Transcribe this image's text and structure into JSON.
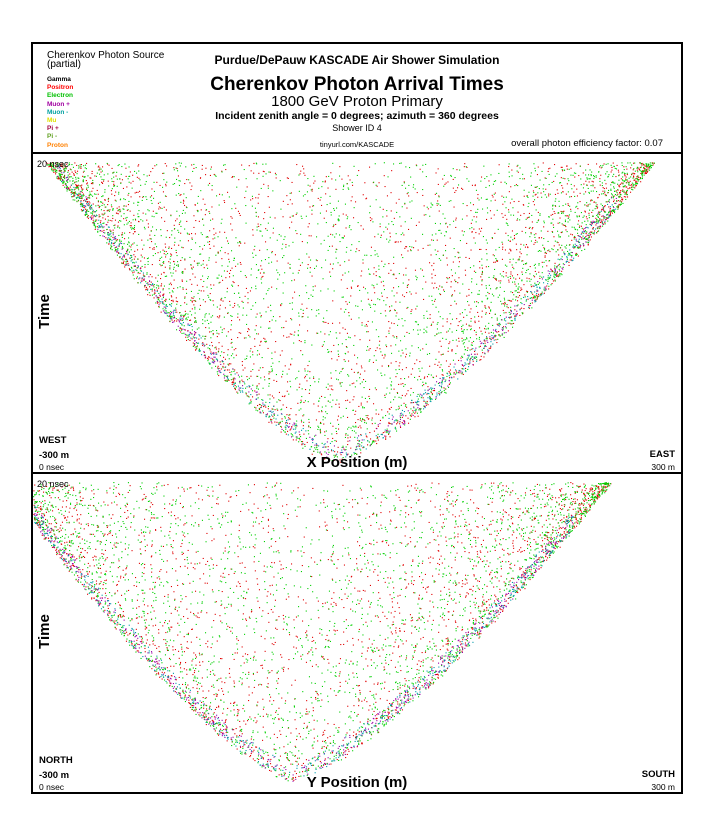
{
  "header": {
    "source_title": "Cherenkov Photon Source",
    "source_subtitle": "(partial)",
    "legend": [
      {
        "label": "Gamma",
        "color": "#000000"
      },
      {
        "label": "Positron",
        "color": "#ff0000"
      },
      {
        "label": "Electron",
        "color": "#00c000"
      },
      {
        "label": "Muon +",
        "color": "#a000a0"
      },
      {
        "label": "Muon -",
        "color": "#00a0a0"
      },
      {
        "label": "Mu",
        "color": "#e0e000"
      },
      {
        "label": "Pi +",
        "color": "#a00040"
      },
      {
        "label": "Pi -",
        "color": "#60a020"
      },
      {
        "label": "Proton",
        "color": "#ff8000"
      }
    ],
    "simulation": "Purdue/DePauw KASCADE Air Shower Simulation",
    "title": "Cherenkov Photon Arrival Times",
    "primary": "1800 GeV Proton Primary",
    "incident": "Incident zenith angle =  0 degrees;  azimuth =  360 degrees",
    "shower_id": "Shower ID 4",
    "url": "tinyurl.com/KASCADE",
    "efficiency": "overall photon efficiency factor: 0.07"
  },
  "chart_data": [
    {
      "type": "scatter",
      "xlabel": "X Position (m)",
      "ylabel": "Time",
      "xlim": [
        -300,
        300
      ],
      "ylim": [
        0,
        20
      ],
      "t_max_label": "20 nsec",
      "t_min_label": "0 nsec",
      "left_direction": "WEST",
      "right_direction": "EAST",
      "left_pos": "-300 m",
      "right_pos": "300 m",
      "vertex": {
        "x": -20,
        "t": 0
      },
      "series": [
        {
          "name": "Positron",
          "color": "#e00000",
          "points": 2600
        },
        {
          "name": "Electron",
          "color": "#00d000",
          "points": 3000
        },
        {
          "name": "Muon +",
          "color": "#9a00a8",
          "points": 350
        },
        {
          "name": "Muon -",
          "color": "#009aaa",
          "points": 450
        }
      ]
    },
    {
      "type": "scatter",
      "xlabel": "Y Position (m)",
      "ylabel": "Time",
      "xlim": [
        -300,
        300
      ],
      "ylim": [
        0,
        20
      ],
      "t_max_label": "20 nsec",
      "t_min_label": "0 nsec",
      "left_direction": "NORTH",
      "right_direction": "SOUTH",
      "left_pos": "-300 m",
      "right_pos": "300 m",
      "vertex": {
        "x": -60,
        "t": 0
      },
      "series": [
        {
          "name": "Positron",
          "color": "#e00000",
          "points": 2600
        },
        {
          "name": "Electron",
          "color": "#00d000",
          "points": 3000
        },
        {
          "name": "Muon +",
          "color": "#9a00a8",
          "points": 500
        },
        {
          "name": "Muon -",
          "color": "#009aaa",
          "points": 500
        }
      ]
    }
  ]
}
